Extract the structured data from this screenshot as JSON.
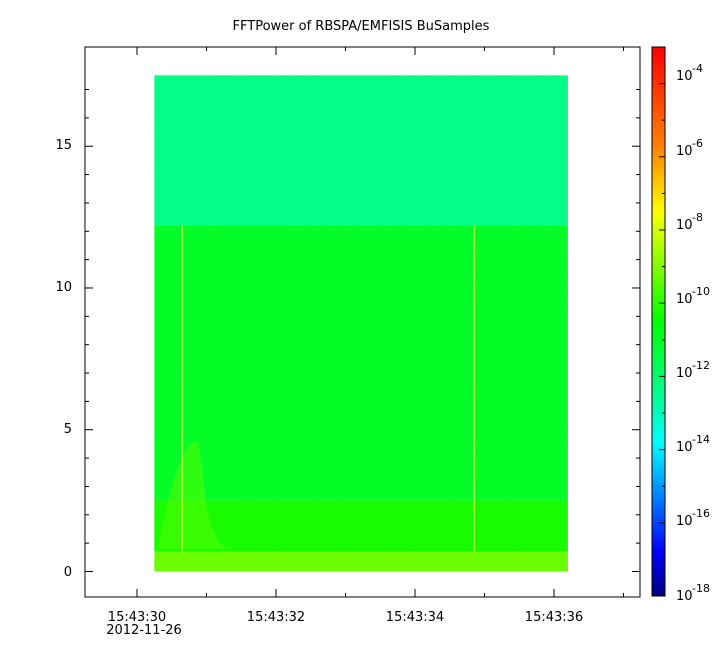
{
  "chart_data": {
    "type": "heatmap",
    "title": "FFTPower of RBSPA/EMFISIS  BuSamples",
    "x_ticks": [
      "15:43:30",
      "15:43:32",
      "15:43:34",
      "15:43:36"
    ],
    "x_date_label": "2012-11-26",
    "y_ticks": [
      "0",
      "5",
      "10",
      "15"
    ],
    "ylim": [
      -0.9,
      18.5
    ],
    "colorbar": {
      "scale": "log",
      "range": [
        1e-18,
        0.001
      ],
      "tick_exponents": [
        "-4",
        "-6",
        "-8",
        "-10",
        "-12",
        "-14",
        "-16",
        "-18"
      ],
      "colors": [
        "#00007f",
        "#0000ff",
        "#007fff",
        "#00ffff",
        "#00ff80",
        "#00ff00",
        "#80ff00",
        "#ffff00",
        "#ff8000",
        "#ff0000"
      ]
    },
    "spectrogram": {
      "x_range": [
        "15:43:30.25",
        "15:43:36.2"
      ],
      "y_range": [
        0,
        17.5
      ],
      "bands": [
        {
          "y_range": [
            0,
            0.7
          ],
          "log10_power": -8.3
        },
        {
          "y_range": [
            0.7,
            2.5
          ],
          "log10_power": -9.4
        },
        {
          "y_range": [
            2.5,
            12.2
          ],
          "log10_power": -10.2
        },
        {
          "y_range": [
            12.2,
            17.5
          ],
          "log10_power": -11.5
        }
      ],
      "vertical_streaks": [
        "15:43:30.65",
        "15:43:34.85"
      ],
      "burst_region": {
        "x_range": [
          "15:43:30.3",
          "15:43:31.3"
        ],
        "y_range": [
          0.8,
          4.6
        ],
        "log10_power": -8.6
      }
    }
  }
}
